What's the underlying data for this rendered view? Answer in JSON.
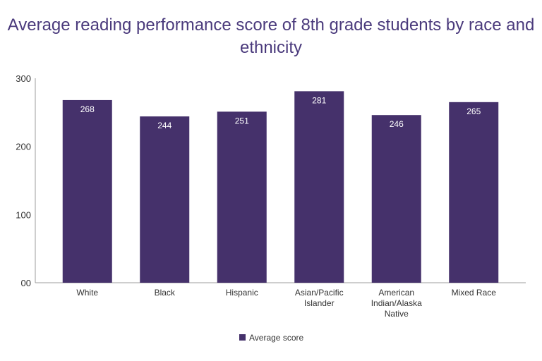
{
  "chart_data": {
    "type": "bar",
    "title": "Average reading performance score of 8th grade students by race and ethnicity",
    "categories": [
      [
        "White"
      ],
      [
        "Black"
      ],
      [
        "Hispanic"
      ],
      [
        "Asian/Pacific",
        "Islander"
      ],
      [
        "American",
        "Indian/Alaska",
        "Native"
      ],
      [
        "Mixed Race"
      ]
    ],
    "series": [
      {
        "name": "Average score",
        "values": [
          268,
          244,
          251,
          281,
          246,
          265
        ]
      }
    ],
    "ylim": [
      0,
      300
    ],
    "yticks": [
      {
        "value": 0,
        "label": "00"
      },
      {
        "value": 100,
        "label": "100"
      },
      {
        "value": 200,
        "label": "200"
      },
      {
        "value": 300,
        "label": "300"
      }
    ],
    "grid": false,
    "legend": "bottom",
    "colors": {
      "bar": "#45316b",
      "title": "#4a3a7c",
      "label": "#ffffff",
      "axis": "#9e9e9e",
      "text": "#333333"
    }
  }
}
